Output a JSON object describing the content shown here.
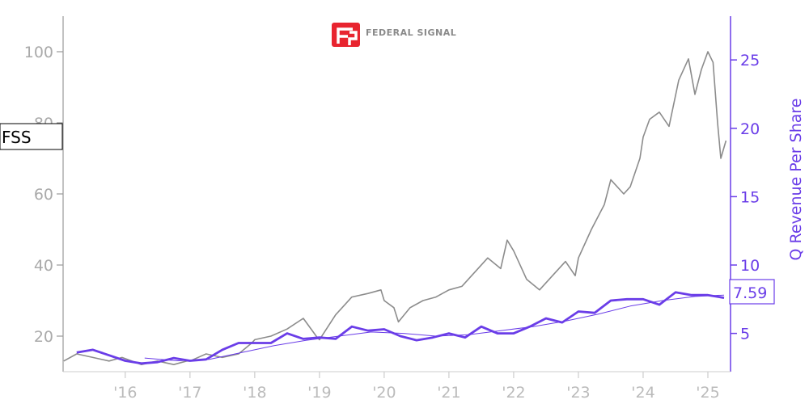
{
  "chart_data": {
    "type": "line",
    "ticker": "FSS",
    "logo_text": "FEDERAL SIGNAL",
    "ylabel_right": "Q Revenue Per Share",
    "last_value_label": "7.59",
    "x_ticks": [
      {
        "year": 2016,
        "label": "'16"
      },
      {
        "year": 2017,
        "label": "'17"
      },
      {
        "year": 2018,
        "label": "'18"
      },
      {
        "year": 2019,
        "label": "'19"
      },
      {
        "year": 2020,
        "label": "'20"
      },
      {
        "year": 2021,
        "label": "'21"
      },
      {
        "year": 2022,
        "label": "'22"
      },
      {
        "year": 2023,
        "label": "'23"
      },
      {
        "year": 2024,
        "label": "'24"
      },
      {
        "year": 2025,
        "label": "'25"
      }
    ],
    "xlim": [
      2015.04,
      2025.35
    ],
    "y_left": {
      "ticks": [
        20,
        40,
        60,
        80,
        100
      ],
      "lim": [
        10,
        110
      ]
    },
    "y_right": {
      "ticks": [
        5,
        10,
        15,
        20,
        25
      ],
      "lim": [
        2.2,
        28.2
      ]
    },
    "colors": {
      "price": "#8c8c8c",
      "revenue": "#6a3de8",
      "axis_left": "#999999",
      "axis_right": "#6a3de8",
      "logo": "#e8242f"
    },
    "series": [
      {
        "axis": "left",
        "x": [
          2015.05,
          2015.25,
          2015.5,
          2015.75,
          2015.95,
          2016.1,
          2016.25,
          2016.5,
          2016.75,
          2016.95,
          2017.0,
          2017.25,
          2017.5,
          2017.75,
          2017.95,
          2018.0,
          2018.25,
          2018.5,
          2018.75,
          2018.95,
          2019.0,
          2019.25,
          2019.5,
          2019.75,
          2019.95,
          2020.0,
          2020.15,
          2020.22,
          2020.4,
          2020.6,
          2020.8,
          2021.0,
          2021.2,
          2021.4,
          2021.6,
          2021.8,
          2021.9,
          2022.0,
          2022.2,
          2022.4,
          2022.6,
          2022.8,
          2022.95,
          2023.0,
          2023.2,
          2023.4,
          2023.5,
          2023.7,
          2023.8,
          2023.95,
          2024.0,
          2024.1,
          2024.25,
          2024.4,
          2024.55,
          2024.7,
          2024.8,
          2024.9,
          2025.0,
          2025.08,
          2025.15,
          2025.2,
          2025.28
        ],
        "y": [
          13,
          15,
          14,
          13,
          14,
          13,
          12,
          13,
          12,
          13,
          13,
          15,
          14,
          15,
          18,
          19,
          20,
          22,
          25,
          20,
          19,
          26,
          31,
          32,
          33,
          30,
          28,
          24,
          28,
          30,
          31,
          33,
          34,
          38,
          42,
          39,
          47,
          44,
          36,
          33,
          37,
          41,
          37,
          42,
          50,
          57,
          64,
          60,
          62,
          70,
          76,
          81,
          83,
          79,
          92,
          98,
          88,
          95,
          100,
          97,
          80,
          70,
          75
        ]
      },
      {
        "axis": "right",
        "name": "Q Revenue Per Share",
        "x": [
          2015.25,
          2015.5,
          2015.75,
          2016.0,
          2016.25,
          2016.5,
          2016.75,
          2017.0,
          2017.25,
          2017.5,
          2017.75,
          2018.0,
          2018.25,
          2018.5,
          2018.75,
          2019.0,
          2019.25,
          2019.5,
          2019.75,
          2020.0,
          2020.25,
          2020.5,
          2020.75,
          2021.0,
          2021.25,
          2021.5,
          2021.75,
          2022.0,
          2022.25,
          2022.5,
          2022.75,
          2023.0,
          2023.25,
          2023.5,
          2023.75,
          2024.0,
          2024.25,
          2024.5,
          2024.75,
          2025.0,
          2025.25
        ],
        "y": [
          3.6,
          3.8,
          3.4,
          3.0,
          2.8,
          2.9,
          3.2,
          3.0,
          3.1,
          3.8,
          4.3,
          4.3,
          4.3,
          5.0,
          4.6,
          4.7,
          4.6,
          5.5,
          5.2,
          5.3,
          4.8,
          4.5,
          4.7,
          5.0,
          4.7,
          5.5,
          5.0,
          5.0,
          5.5,
          6.1,
          5.8,
          6.6,
          6.5,
          7.4,
          7.5,
          7.5,
          7.1,
          8.0,
          7.8,
          7.8,
          7.6
        ]
      },
      {
        "axis": "right",
        "x": [
          2016.3,
          2016.8,
          2017.3,
          2017.8,
          2018.3,
          2018.8,
          2019.3,
          2019.8,
          2020.3,
          2020.8,
          2021.3,
          2021.8,
          2022.3,
          2022.8,
          2023.3,
          2023.8,
          2024.3,
          2024.8,
          2025.25
        ],
        "y": [
          3.2,
          3.0,
          3.1,
          3.6,
          4.1,
          4.5,
          4.8,
          5.1,
          5.0,
          4.8,
          4.9,
          5.2,
          5.5,
          5.9,
          6.4,
          7.0,
          7.4,
          7.7,
          7.8
        ]
      }
    ]
  }
}
